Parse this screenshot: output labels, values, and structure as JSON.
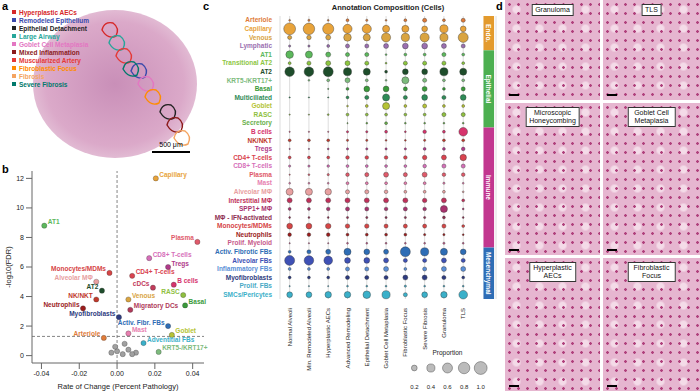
{
  "panel_labels": [
    "a",
    "b",
    "c",
    "d"
  ],
  "panel_a": {
    "legend": [
      {
        "label": "Hyperplastic AECs",
        "color": "#d62728"
      },
      {
        "label": "Remodeled Epithelium",
        "color": "#3949ab"
      },
      {
        "label": "Epithelial Detachment",
        "color": "#222222"
      },
      {
        "label": "Large Airway",
        "color": "#26a69a"
      },
      {
        "label": "Goblet Cell Metaplasia",
        "color": "#e377c2"
      },
      {
        "label": "Mixed Inflammation",
        "color": "#8b1a1a"
      },
      {
        "label": "Muscularized Artery",
        "color": "#e53935"
      },
      {
        "label": "Fibroblastic Focus",
        "color": "#ff8c00"
      },
      {
        "label": "Fibrosis",
        "color": "#f4a460"
      },
      {
        "label": "Severe Fibrosis",
        "color": "#00796b"
      }
    ],
    "scale_bar": "500 μm"
  },
  "chart_data": [
    {
      "type": "scatter",
      "x_label": "Rate of Change (Percent Pathology)",
      "y_label": "-log10(FDR)",
      "xlim": [
        -0.045,
        0.046
      ],
      "xticks": [
        {
          "value": -0.04,
          "label": "-0.04"
        },
        {
          "value": -0.02,
          "label": "-0.02"
        },
        {
          "value": 0,
          "label": "0.00"
        },
        {
          "value": 0.02,
          "label": "0.02"
        },
        {
          "value": 0.04,
          "label": "0.04"
        }
      ],
      "ylim": [
        -0.5,
        12.5
      ],
      "yticks": [
        0,
        2,
        4,
        6,
        8,
        10,
        12
      ],
      "reference_lines": [
        {
          "axis": "x",
          "value": 0,
          "line_style": "dashed"
        },
        {
          "axis": "y",
          "value": 1.3,
          "line_style": "dashed"
        }
      ],
      "points": [
        {
          "label": "Capillary",
          "x": 0.0205,
          "y": 12.0,
          "color": "#e8a33a"
        },
        {
          "label": "AT1",
          "x": -0.0385,
          "y": 8.8,
          "color": "#5cb85c"
        },
        {
          "label": "Plasma",
          "x": 0.0425,
          "y": 7.7,
          "color": "#e05a6a"
        },
        {
          "label": "CD8+ T-cells",
          "x": 0.017,
          "y": 6.6,
          "color": "#d66fb9"
        },
        {
          "label": "Monocytes/MDMs",
          "x": -0.004,
          "y": 5.6,
          "color": "#d64545"
        },
        {
          "label": "CD4+ T-cells",
          "x": 0.008,
          "y": 5.4,
          "color": "#d9434f"
        },
        {
          "label": "Tregs",
          "x": 0.027,
          "y": 6.0,
          "color": "#b03a8a"
        },
        {
          "label": "Alveolar MΦ",
          "x": -0.011,
          "y": 5.0,
          "color": "#e8a0a0"
        },
        {
          "label": "B cells",
          "x": 0.03,
          "y": 4.8,
          "color": "#d6336c"
        },
        {
          "label": "cDCs",
          "x": 0.019,
          "y": 4.6,
          "color": "#c23b5b"
        },
        {
          "label": "RASC",
          "x": 0.035,
          "y": 4.1,
          "color": "#8fbf3f"
        },
        {
          "label": "AT2",
          "x": -0.008,
          "y": 4.4,
          "color": "#1e4d2b"
        },
        {
          "label": "Venous",
          "x": 0.006,
          "y": 3.8,
          "color": "#d9a441"
        },
        {
          "label": "NK/NKT",
          "x": -0.011,
          "y": 3.8,
          "color": "#c0392b"
        },
        {
          "label": "Basal",
          "x": 0.036,
          "y": 3.4,
          "color": "#3a9a3a"
        },
        {
          "label": "Migratory DCs",
          "x": 0.007,
          "y": 3.1,
          "color": "#b03a5a"
        },
        {
          "label": "Activ. Fibr. FBs",
          "x": 0.027,
          "y": 2.0,
          "color": "#2e6db5"
        },
        {
          "label": "Neutrophils",
          "x": -0.018,
          "y": 3.2,
          "color": "#9b1c1c"
        },
        {
          "label": "Myofibroblasts",
          "x": 0.001,
          "y": 2.6,
          "color": "#2d3b80"
        },
        {
          "label": "Mast",
          "x": 0.006,
          "y": 1.5,
          "color": "#e77fb0"
        },
        {
          "label": "Arteriole",
          "x": -0.007,
          "y": 1.2,
          "color": "#e07b39"
        },
        {
          "label": "Goblet",
          "x": 0.029,
          "y": 1.4,
          "color": "#b5c334"
        },
        {
          "label": "Adventitial FBs",
          "x": 0.014,
          "y": 0.85,
          "color": "#3bb0c9"
        },
        {
          "label": "KRT5-/KRT17+",
          "x": 0.022,
          "y": 0.25,
          "color": "#7dbb7d"
        },
        {
          "label": null,
          "x": 0.0,
          "y": 0.3,
          "color": "#a0a0a0"
        },
        {
          "label": null,
          "x": 0.003,
          "y": 0.1,
          "color": "#a0a0a0"
        },
        {
          "label": null,
          "x": -0.003,
          "y": 0.2,
          "color": "#a0a0a0"
        },
        {
          "label": null,
          "x": 0.006,
          "y": 0.4,
          "color": "#a0a0a0"
        },
        {
          "label": null,
          "x": 0.01,
          "y": 0.2,
          "color": "#a0a0a0"
        },
        {
          "label": null,
          "x": -0.001,
          "y": 0.6,
          "color": "#a0a0a0"
        },
        {
          "label": null,
          "x": 0.004,
          "y": 0.8,
          "color": "#a0a0a0"
        },
        {
          "label": null,
          "x": 0.008,
          "y": 0.1,
          "color": "#a0a0a0"
        }
      ]
    },
    {
      "type": "dotplot",
      "title": "Annotation Composition (Cells)",
      "categories": [
        "Normal Alveoli",
        "Min. Remodeled Alveoli",
        "Hyperplastic AECs",
        "Advanced Remodeling",
        "Epithelial Detachment",
        "Goblet Cell Metaplasia",
        "Fibroblastic Focus",
        "Severe Fibrosis",
        "Granuloma",
        "TLS"
      ],
      "zlim": [
        0,
        1
      ],
      "size_legend": {
        "title": "Proportion",
        "values": [
          0.2,
          0.4,
          0.6,
          0.8,
          {
            "value": 1,
            "label": "1.0"
          }
        ]
      },
      "groups": [
        {
          "name": "Endo.",
          "color": "#e39a2d",
          "rows": [
            {
              "name": "Arteriole",
              "color": "#e07b39",
              "values": [
                0.02,
                0.03,
                0.02,
                0.05,
                0.03,
                0.02,
                0.05,
                0.1,
                0.05,
                0.1
              ]
            },
            {
              "name": "Capillary",
              "color": "#e8a33a",
              "values": [
                0.85,
                0.8,
                0.75,
                0.5,
                0.5,
                0.3,
                0.3,
                0.2,
                0.4,
                0.2
              ]
            },
            {
              "name": "Venous",
              "color": "#d9a441",
              "values": [
                0.1,
                0.12,
                0.15,
                0.35,
                0.3,
                0.5,
                0.4,
                0.5,
                0.4,
                0.6
              ]
            },
            {
              "name": "Lymphatic",
              "color": "#9a6fb0",
              "values": [
                0.03,
                0.03,
                0.05,
                0.1,
                0.1,
                0.15,
                0.2,
                0.2,
                0.15,
                0.1
              ]
            }
          ]
        },
        {
          "name": "Epithelial",
          "color": "#4caf50",
          "rows": [
            {
              "name": "AT1",
              "color": "#5cb85c",
              "values": [
                0.35,
                0.3,
                0.15,
                0.1,
                0.1,
                0.02,
                0.05,
                0.05,
                0.1,
                0.05
              ]
            },
            {
              "name": "Transitional AT2",
              "color": "#8dc63f",
              "values": [
                0.05,
                0.1,
                0.15,
                0.15,
                0.1,
                0.02,
                0.1,
                0.1,
                0.1,
                0.05
              ]
            },
            {
              "name": "AT2",
              "color": "#1e4d2b",
              "values": [
                0.55,
                0.55,
                0.6,
                0.4,
                0.3,
                0.05,
                0.2,
                0.2,
                0.4,
                0.3
              ]
            },
            {
              "name": "KRT5-/KRT17+",
              "color": "#7dbb7d",
              "values": [
                0,
                0.02,
                0.05,
                0.15,
                0.05,
                0.02,
                0.3,
                0.1,
                0.05,
                0.05
              ]
            },
            {
              "name": "Basal",
              "color": "#3a9a3a",
              "values": [
                0,
                0,
                0.01,
                0.05,
                0.2,
                0.2,
                0.1,
                0.15,
                0.05,
                0.1
              ]
            },
            {
              "name": "Multiciliated",
              "color": "#2e8b57",
              "values": [
                0.01,
                0.01,
                0.01,
                0.05,
                0.1,
                0.3,
                0.1,
                0.2,
                0.1,
                0.2
              ]
            },
            {
              "name": "Goblet",
              "color": "#b5c334",
              "values": [
                0,
                0,
                0,
                0.02,
                0.05,
                0.3,
                0.05,
                0.1,
                0.05,
                0.05
              ]
            },
            {
              "name": "RASC",
              "color": "#8fbf3f",
              "values": [
                0.01,
                0.01,
                0.02,
                0.05,
                0.05,
                0.05,
                0.05,
                0.05,
                0.1,
                0.1
              ]
            },
            {
              "name": "Secretory",
              "color": "#6ab04c",
              "values": [
                0,
                0,
                0,
                0.01,
                0.02,
                0.05,
                0.02,
                0.02,
                0.02,
                0.02
              ]
            }
          ]
        },
        {
          "name": "Immune",
          "color": "#c2378f",
          "rows": [
            {
              "name": "B cells",
              "color": "#d6336c",
              "values": [
                0.01,
                0.01,
                0.01,
                0.03,
                0.03,
                0.05,
                0.02,
                0.08,
                0.05,
                0.45
              ]
            },
            {
              "name": "NK/NKT",
              "color": "#c0392b",
              "values": [
                0.05,
                0.05,
                0.05,
                0.03,
                0.03,
                0.02,
                0.02,
                0.03,
                0.05,
                0.05
              ]
            },
            {
              "name": "Tregs",
              "color": "#b03a8a",
              "values": [
                0.01,
                0.01,
                0.02,
                0.03,
                0.03,
                0.03,
                0.03,
                0.05,
                0.05,
                0.08
              ]
            },
            {
              "name": "CD4+ T-cells",
              "color": "#d9434f",
              "values": [
                0.05,
                0.05,
                0.05,
                0.08,
                0.08,
                0.08,
                0.08,
                0.12,
                0.15,
                0.25
              ]
            },
            {
              "name": "CD8+ T-cells",
              "color": "#d66fb9",
              "values": [
                0.03,
                0.03,
                0.04,
                0.05,
                0.05,
                0.05,
                0.05,
                0.08,
                0.1,
                0.1
              ]
            },
            {
              "name": "Plasma",
              "color": "#e05a6a",
              "values": [
                0.01,
                0.02,
                0.03,
                0.08,
                0.1,
                0.15,
                0.1,
                0.15,
                0.08,
                0.08
              ]
            },
            {
              "name": "Mast",
              "color": "#e77fb0",
              "values": [
                0.02,
                0.02,
                0.02,
                0.05,
                0.05,
                0.05,
                0.05,
                0.05,
                0.03,
                0.02
              ]
            },
            {
              "name": "Alveolar MΦ",
              "color": "#e8a0a0",
              "values": [
                0.3,
                0.3,
                0.25,
                0.1,
                0.1,
                0.08,
                0.05,
                0.05,
                0.05,
                0.02
              ]
            },
            {
              "name": "Interstitial MΦ",
              "color": "#c0305a",
              "values": [
                0.15,
                0.15,
                0.15,
                0.15,
                0.15,
                0.15,
                0.15,
                0.12,
                0.15,
                0.05
              ]
            },
            {
              "name": "SPP1+ MΦ",
              "color": "#a8326e",
              "values": [
                0.05,
                0.05,
                0.08,
                0.1,
                0.1,
                0.08,
                0.1,
                0.08,
                0.3,
                0.02
              ]
            },
            {
              "name": "MΦ - IFN-activated",
              "color": "#8e2c4f",
              "values": [
                0.02,
                0.02,
                0.02,
                0.03,
                0.03,
                0.03,
                0.03,
                0.03,
                0.05,
                0.02
              ]
            },
            {
              "name": "Monocytes/MDMs",
              "color": "#d64545",
              "values": [
                0.2,
                0.2,
                0.18,
                0.12,
                0.12,
                0.1,
                0.1,
                0.1,
                0.1,
                0.05
              ]
            },
            {
              "name": "Neutrophils",
              "color": "#9b1c1c",
              "values": [
                0.08,
                0.08,
                0.08,
                0.05,
                0.05,
                0.05,
                0.05,
                0.03,
                0.03,
                0.02
              ]
            },
            {
              "name": "Prolif. Myeloid",
              "color": "#c75b8a",
              "values": [
                0.01,
                0.01,
                0.01,
                0.02,
                0.02,
                0.02,
                0.02,
                0.02,
                0.03,
                0.02
              ]
            }
          ]
        },
        {
          "name": "Mesenchymal",
          "color": "#2e6db5",
          "rows": [
            {
              "name": "Activ. Fibrotic FBs",
              "color": "#2e6db5",
              "values": [
                0.05,
                0.1,
                0.15,
                0.3,
                0.2,
                0.15,
                0.6,
                0.4,
                0.3,
                0.2
              ]
            },
            {
              "name": "Alveolar FBs",
              "color": "#3f51b5",
              "values": [
                0.6,
                0.55,
                0.45,
                0.2,
                0.2,
                0.15,
                0.1,
                0.1,
                0.15,
                0.1
              ]
            },
            {
              "name": "Inflammatory FBs",
              "color": "#5a8fd6",
              "values": [
                0.05,
                0.05,
                0.05,
                0.1,
                0.1,
                0.15,
                0.05,
                0.1,
                0.15,
                0.15
              ]
            },
            {
              "name": "Myofibroblasts",
              "color": "#2d3b80",
              "values": [
                0.05,
                0.05,
                0.05,
                0.1,
                0.1,
                0.1,
                0.15,
                0.15,
                0.1,
                0.05
              ]
            },
            {
              "name": "Prolif. FBs",
              "color": "#48a9c5",
              "values": [
                0.01,
                0.01,
                0.01,
                0.02,
                0.02,
                0.02,
                0.03,
                0.02,
                0.02,
                0.02
              ]
            },
            {
              "name": "SMCs/Pericytes",
              "color": "#3bb0c9",
              "values": [
                0.2,
                0.2,
                0.25,
                0.25,
                0.35,
                0.4,
                0.1,
                0.2,
                0.25,
                0.45
              ]
            }
          ]
        }
      ]
    }
  ],
  "panel_d": {
    "tiles": [
      "Granuloma",
      "TLS",
      "Microscopic Honeycombing",
      "Goblet Cell Metaplasia",
      "Hyperplastic AECs",
      "Fibroblastic Focus"
    ]
  }
}
